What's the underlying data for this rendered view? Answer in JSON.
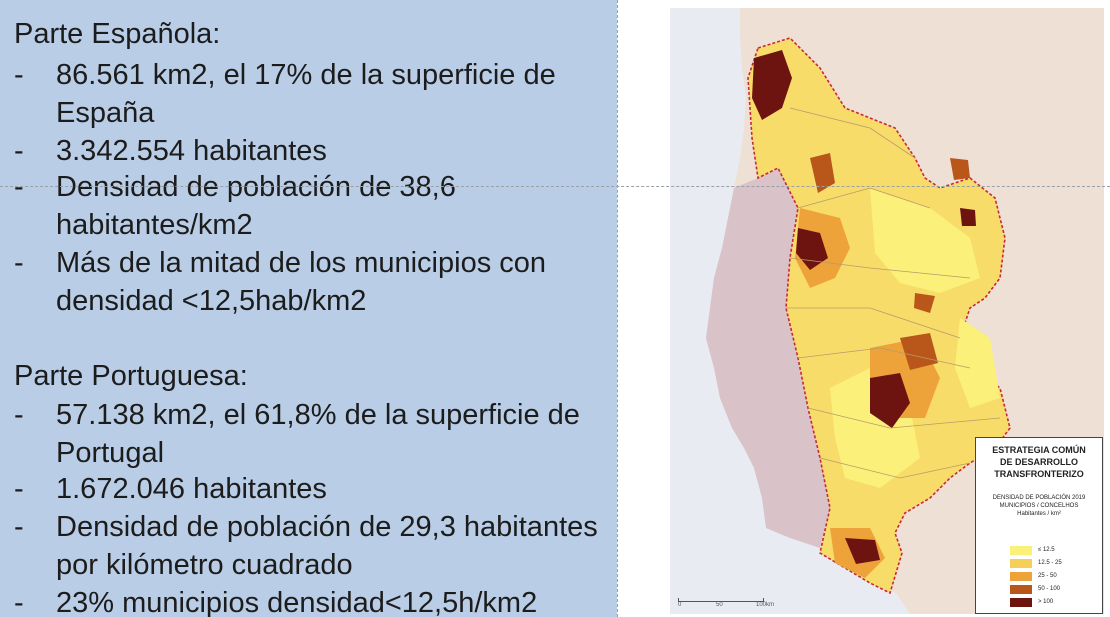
{
  "spain": {
    "title": "Parte Española:",
    "bullets": [
      "86.561 km2, el 17% de la superficie de España",
      "3.342.554 habitantes",
      "Densidad de población de 38,6 habitantes/km2",
      "Más de la mitad de los municipios con densidad <12,5hab/km2"
    ]
  },
  "portugal": {
    "title": "Parte Portuguesa:",
    "bullets": [
      "57.138 km2, el 61,8% de la superficie de Portugal",
      "1.672.046 habitantes",
      "Densidad de población de 29,3 habitantes por kilómetro cuadrado",
      "23% municipios densidad<12,5h/km2"
    ]
  },
  "bullet_dash": "-",
  "legend": {
    "title_lines": [
      "ESTRATEGIA COMÚN",
      "DE DESARROLLO",
      "TRANSFRONTERIZO"
    ],
    "subtitle_lines": [
      "DENSIDAD DE POBLACIÓN 2019",
      "MUNICIPIOS / CONCELHOS",
      "Habitantes / km²"
    ],
    "classes": [
      {
        "label": "≤ 12.5",
        "color": "#fbf07a"
      },
      {
        "label": "12.5 - 25",
        "color": "#f6cf58"
      },
      {
        "label": "25 - 50",
        "color": "#eea33a"
      },
      {
        "label": "50 - 100",
        "color": "#b9571b"
      },
      {
        "label": "> 100",
        "color": "#6e1410"
      }
    ]
  },
  "scale": {
    "labels": [
      "0",
      "50",
      "100km"
    ]
  },
  "map_colors": {
    "sea": "#e8ecf2",
    "land_outside": "#efe0d6",
    "portugal_outside": "#d9c2c8",
    "border": "#c8283a"
  }
}
